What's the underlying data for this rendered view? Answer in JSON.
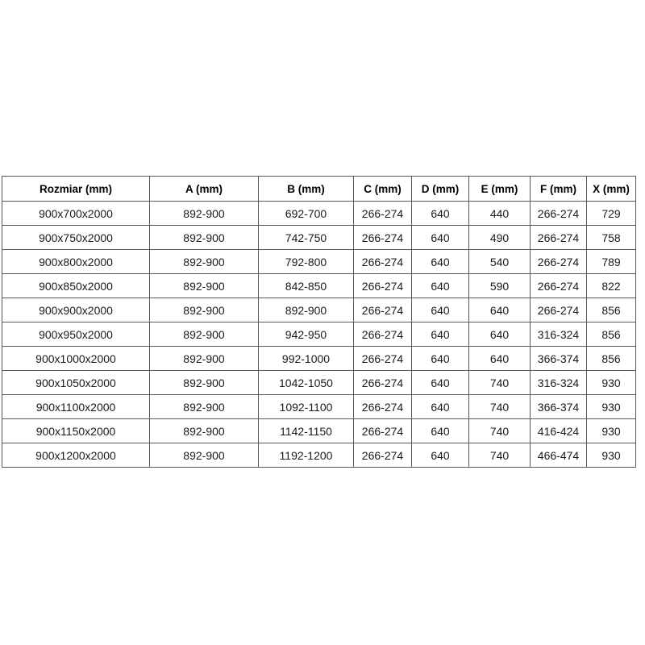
{
  "table": {
    "columns": [
      "Rozmiar (mm)",
      "A (mm)",
      "B (mm)",
      "C (mm)",
      "D (mm)",
      "E (mm)",
      "F (mm)",
      "X (mm)"
    ],
    "rows": [
      [
        "900x700x2000",
        "892-900",
        "692-700",
        "266-274",
        "640",
        "440",
        "266-274",
        "729"
      ],
      [
        "900x750x2000",
        "892-900",
        "742-750",
        "266-274",
        "640",
        "490",
        "266-274",
        "758"
      ],
      [
        "900x800x2000",
        "892-900",
        "792-800",
        "266-274",
        "640",
        "540",
        "266-274",
        "789"
      ],
      [
        "900x850x2000",
        "892-900",
        "842-850",
        "266-274",
        "640",
        "590",
        "266-274",
        "822"
      ],
      [
        "900x900x2000",
        "892-900",
        "892-900",
        "266-274",
        "640",
        "640",
        "266-274",
        "856"
      ],
      [
        "900x950x2000",
        "892-900",
        "942-950",
        "266-274",
        "640",
        "640",
        "316-324",
        "856"
      ],
      [
        "900x1000x2000",
        "892-900",
        "992-1000",
        "266-274",
        "640",
        "640",
        "366-374",
        "856"
      ],
      [
        "900x1050x2000",
        "892-900",
        "1042-1050",
        "266-274",
        "640",
        "740",
        "316-324",
        "930"
      ],
      [
        "900x1100x2000",
        "892-900",
        "1092-1100",
        "266-274",
        "640",
        "740",
        "366-374",
        "930"
      ],
      [
        "900x1150x2000",
        "892-900",
        "1142-1150",
        "266-274",
        "640",
        "740",
        "416-424",
        "930"
      ],
      [
        "900x1200x2000",
        "892-900",
        "1192-1200",
        "266-274",
        "640",
        "740",
        "466-474",
        "930"
      ]
    ]
  },
  "chart_data": {
    "type": "table",
    "title": "",
    "columns": [
      "Rozmiar (mm)",
      "A (mm)",
      "B (mm)",
      "C (mm)",
      "D (mm)",
      "E (mm)",
      "F (mm)",
      "X (mm)"
    ],
    "rows": [
      [
        "900x700x2000",
        "892-900",
        "692-700",
        "266-274",
        "640",
        "440",
        "266-274",
        "729"
      ],
      [
        "900x750x2000",
        "892-900",
        "742-750",
        "266-274",
        "640",
        "490",
        "266-274",
        "758"
      ],
      [
        "900x800x2000",
        "892-900",
        "792-800",
        "266-274",
        "640",
        "540",
        "266-274",
        "789"
      ],
      [
        "900x850x2000",
        "892-900",
        "842-850",
        "266-274",
        "640",
        "590",
        "266-274",
        "822"
      ],
      [
        "900x900x2000",
        "892-900",
        "892-900",
        "266-274",
        "640",
        "640",
        "266-274",
        "856"
      ],
      [
        "900x950x2000",
        "892-900",
        "942-950",
        "266-274",
        "640",
        "640",
        "316-324",
        "856"
      ],
      [
        "900x1000x2000",
        "892-900",
        "992-1000",
        "266-274",
        "640",
        "640",
        "366-374",
        "856"
      ],
      [
        "900x1050x2000",
        "892-900",
        "1042-1050",
        "266-274",
        "640",
        "740",
        "316-324",
        "930"
      ],
      [
        "900x1100x2000",
        "892-900",
        "1092-1100",
        "266-274",
        "640",
        "740",
        "366-374",
        "930"
      ],
      [
        "900x1150x2000",
        "892-900",
        "1142-1150",
        "266-274",
        "640",
        "740",
        "416-424",
        "930"
      ],
      [
        "900x1200x2000",
        "892-900",
        "1192-1200",
        "266-274",
        "640",
        "740",
        "466-474",
        "930"
      ]
    ]
  },
  "colors": {
    "background": "#ffffff",
    "border": "#595959",
    "text": "#1a1a1a",
    "header_text": "#000000"
  }
}
